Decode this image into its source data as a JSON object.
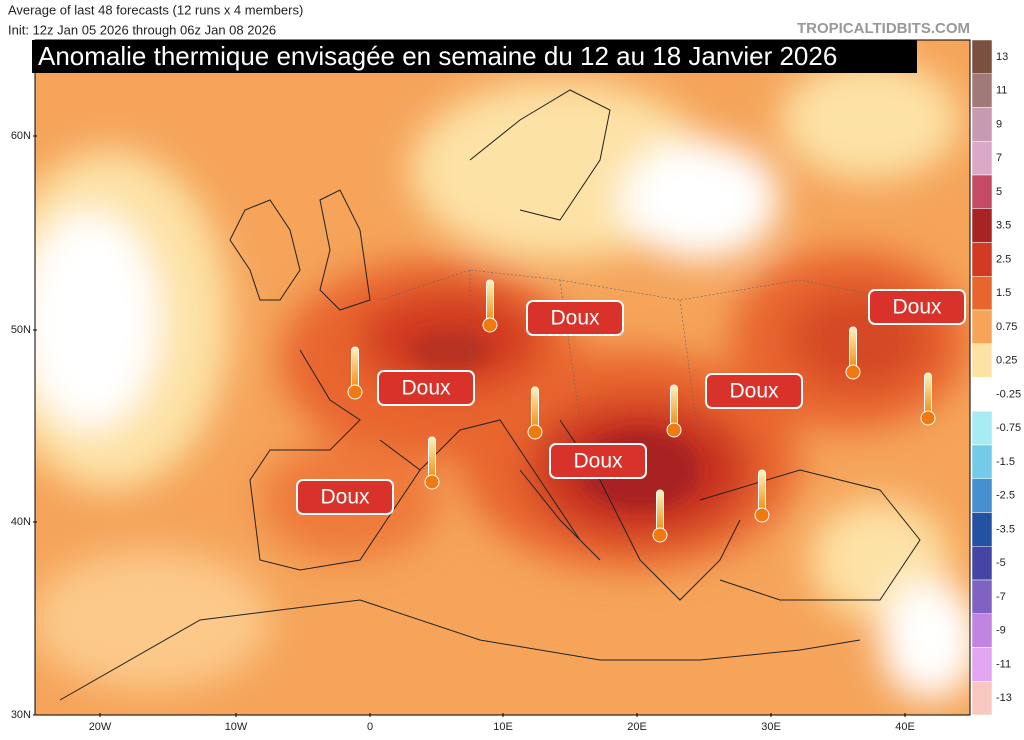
{
  "header": {
    "line1": "Average of last 48 forecasts (12 runs x 4 members)",
    "line2": "Init: 12z Jan 05 2026 through 06z Jan 08 2026",
    "watermark": "TROPICALTIDBITS.COM",
    "title": "Anomalie thermique envisagée en semaine du 12 au 18 Janvier 2026"
  },
  "axes": {
    "lat_labels": [
      "60N",
      "50N",
      "40N",
      "30N"
    ],
    "lon_labels": [
      "20W",
      "10W",
      "0",
      "10E",
      "20E",
      "30E",
      "40E"
    ]
  },
  "legend": {
    "levels": [
      13,
      11,
      9,
      7,
      5,
      3.5,
      2.5,
      1.5,
      0.75,
      0.25,
      -0.25,
      -0.75,
      -1.5,
      -2.5,
      -3.5,
      -5,
      -7,
      -9,
      -11,
      -13
    ],
    "colors": [
      "#7b5040",
      "#a07a78",
      "#c69ab0",
      "#dba8c8",
      "#c44a66",
      "#a82424",
      "#d23a22",
      "#e8652e",
      "#f6a458",
      "#fde2a6",
      "#ffffff",
      "#a6ecf2",
      "#72cbe8",
      "#4590d0",
      "#2352a2",
      "#4545a5",
      "#8062c2",
      "#c184e0",
      "#e2a6f2",
      "#f8c8c0"
    ]
  },
  "labels": [
    "Doux",
    "Doux",
    "Doux",
    "Doux",
    "Doux",
    "Doux"
  ]
}
